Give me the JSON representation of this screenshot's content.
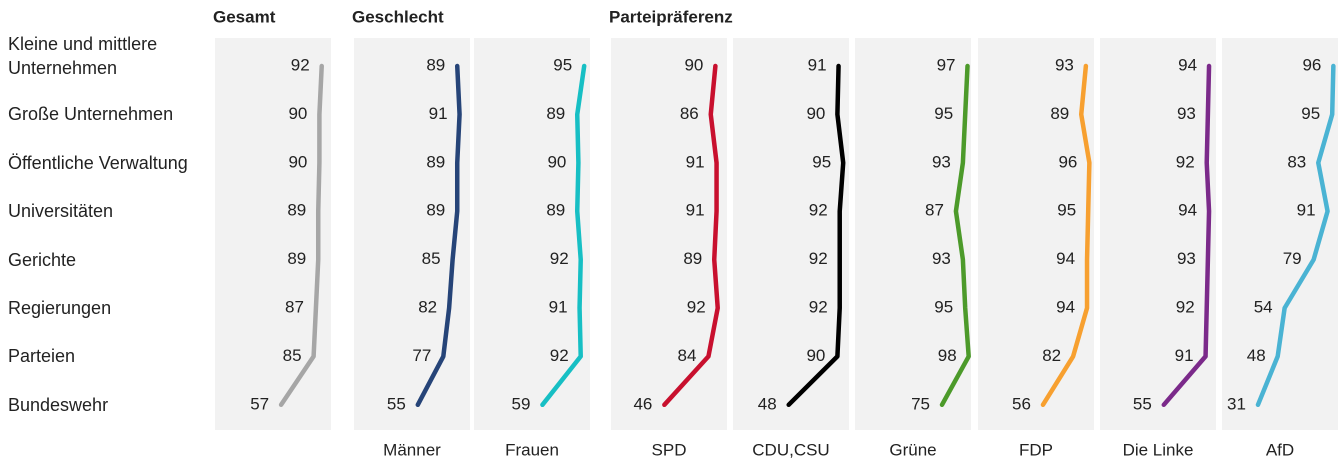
{
  "chart_data": {
    "type": "line",
    "categories": [
      "Kleine und mittlere Unternehmen",
      "Große Unternehmen",
      "Öffentliche Verwaltung",
      "Universitäten",
      "Gerichte",
      "Regierungen",
      "Parteien",
      "Bundeswehr"
    ],
    "xlim": [
      0,
      100
    ],
    "groups": [
      {
        "title": "Gesamt",
        "series": [
          {
            "color": "#a6a6a6",
            "values": [
              92,
              90,
              90,
              89,
              89,
              87,
              85,
              57
            ]
          }
        ]
      },
      {
        "title": "Geschlecht",
        "series": [
          {
            "name": "Männer",
            "color": "#264478",
            "values": [
              89,
              91,
              89,
              89,
              85,
              82,
              77,
              55
            ]
          },
          {
            "name": "Frauen",
            "color": "#17bfc4",
            "values": [
              95,
              89,
              90,
              89,
              92,
              91,
              92,
              59
            ]
          }
        ]
      },
      {
        "title": "Parteipräferenz",
        "series": [
          {
            "name": "SPD",
            "color": "#c8102e",
            "values": [
              90,
              86,
              91,
              91,
              89,
              92,
              84,
              46
            ]
          },
          {
            "name": "CDU,CSU",
            "color": "#000000",
            "values": [
              91,
              90,
              95,
              92,
              92,
              92,
              90,
              48
            ]
          },
          {
            "name": "Grüne",
            "color": "#4c9a2a",
            "values": [
              97,
              95,
              93,
              87,
              93,
              95,
              98,
              75
            ]
          },
          {
            "name": "FDP",
            "color": "#f7a030",
            "values": [
              93,
              89,
              96,
              95,
              94,
              94,
              82,
              56
            ]
          },
          {
            "name": "Die Linke",
            "color": "#7b2a8a",
            "values": [
              94,
              93,
              92,
              94,
              93,
              92,
              91,
              55
            ]
          },
          {
            "name": "AfD",
            "color": "#4ab3d3",
            "values": [
              96,
              95,
              83,
              91,
              79,
              54,
              48,
              31
            ]
          }
        ]
      }
    ]
  }
}
